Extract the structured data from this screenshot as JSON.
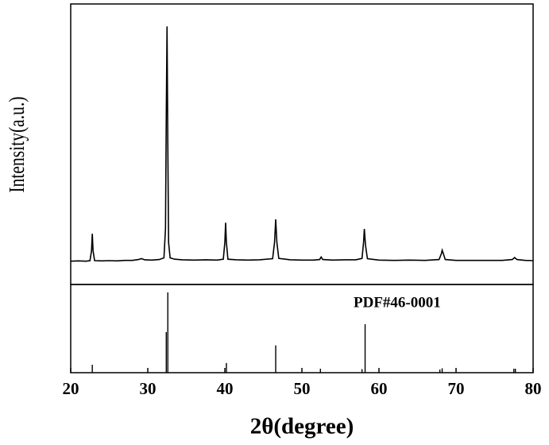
{
  "chart_data": [
    {
      "type": "line",
      "ylabel": "Intensity(a.u.)",
      "color": "#000000",
      "xlim": [
        20,
        80
      ],
      "ylim": [
        0,
        100
      ],
      "x": [
        20,
        21,
        22,
        22.5,
        22.7,
        22.8,
        22.9,
        23.1,
        24,
        25,
        26,
        27,
        28,
        28.8,
        29.2,
        29.6,
        30.5,
        31.5,
        32.1,
        32.3,
        32.4,
        32.5,
        32.6,
        32.7,
        32.9,
        33.5,
        34.5,
        36,
        37.5,
        39,
        39.8,
        40.0,
        40.1,
        40.2,
        40.4,
        41.5,
        43,
        44.5,
        46.2,
        46.45,
        46.6,
        46.75,
        47,
        48.5,
        50,
        51.5,
        52.3,
        52.5,
        52.7,
        54,
        55.5,
        57,
        57.8,
        58.0,
        58.1,
        58.25,
        58.5,
        60,
        62,
        64,
        66,
        67.8,
        68.1,
        68.2,
        68.35,
        68.6,
        70,
        72,
        74,
        76,
        77.3,
        77.6,
        77.9,
        79,
        80
      ],
      "values": [
        8.3,
        8.4,
        8.3,
        8.5,
        12,
        18.1,
        12,
        8.5,
        8.4,
        8.5,
        8.4,
        8.6,
        8.6,
        8.9,
        9.2,
        8.8,
        8.7,
        8.9,
        9.5,
        20,
        60,
        92,
        50,
        15,
        9.5,
        9,
        8.8,
        8.7,
        8.8,
        8.7,
        9,
        15,
        22,
        15,
        9,
        8.8,
        8.7,
        8.8,
        9.2,
        15,
        23.2,
        15,
        9.3,
        8.8,
        8.7,
        8.7,
        8.9,
        9.8,
        8.9,
        8.7,
        8.8,
        8.8,
        9.3,
        15,
        19.8,
        14,
        9.2,
        8.7,
        8.6,
        8.7,
        8.6,
        8.9,
        11,
        12.2,
        11,
        8.9,
        8.6,
        8.6,
        8.6,
        8.6,
        8.9,
        9.6,
        8.9,
        8.6,
        8.5
      ]
    },
    {
      "type": "stick",
      "annotation": "PDF#46-0001",
      "xlabel": "2θ(degree)",
      "color": "#000000",
      "xlim": [
        20,
        80
      ],
      "ylim": [
        0,
        100
      ],
      "xticks": [
        20,
        30,
        40,
        50,
        60,
        70,
        80
      ],
      "x": [
        22.8,
        32.4,
        32.6,
        40.2,
        46.6,
        52.4,
        57.8,
        58.2,
        67.9,
        68.2,
        77.5,
        77.7
      ],
      "values": [
        9,
        46,
        91,
        11,
        31,
        4.5,
        4,
        55,
        3.6,
        5,
        4.5,
        4.5
      ]
    }
  ]
}
